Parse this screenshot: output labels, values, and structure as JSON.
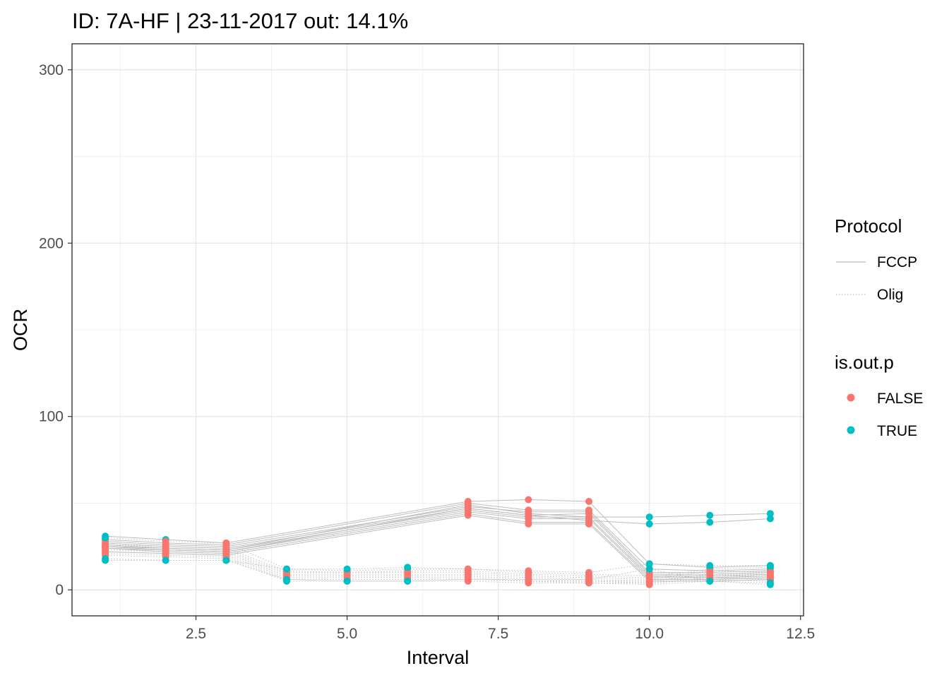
{
  "chart_data": {
    "type": "line",
    "title": "ID: 7A-HF | 23-11-2017  out: 14.1%",
    "xlabel": "Interval",
    "ylabel": "OCR",
    "xlim": [
      0.45,
      12.55
    ],
    "ylim": [
      -15,
      315
    ],
    "x_ticks": [
      2.5,
      5.0,
      7.5,
      10.0,
      12.5
    ],
    "x_tick_labels": [
      "2.5",
      "5.0",
      "7.5",
      "10.0",
      "12.5"
    ],
    "y_ticks": [
      0,
      100,
      200,
      300
    ],
    "y_tick_labels": [
      "0",
      "100",
      "200",
      "300"
    ],
    "grid": true,
    "legend_position": "right",
    "line_color": "#bdbdbd",
    "legends": [
      {
        "title": "Protocol",
        "kind": "line",
        "entries": [
          {
            "label": "FCCP",
            "linetype": "solid"
          },
          {
            "label": "Olig",
            "linetype": "dotted"
          }
        ]
      },
      {
        "title": "is.out.p",
        "kind": "point",
        "entries": [
          {
            "label": "FALSE",
            "color": "#f8766d"
          },
          {
            "label": "TRUE",
            "color": "#00bfc4"
          }
        ]
      }
    ],
    "colors": {
      "FALSE": "#f8766d",
      "TRUE": "#00bfc4"
    },
    "series": [
      {
        "protocol": "FCCP",
        "x": [
          1,
          2,
          3,
          7,
          8,
          9,
          10,
          11,
          12
        ],
        "y": [
          31,
          29,
          27,
          51,
          52,
          51,
          15,
          13,
          14
        ],
        "out": [
          true,
          true,
          false,
          false,
          false,
          false,
          true,
          true,
          true
        ]
      },
      {
        "protocol": "FCCP",
        "x": [
          1,
          2,
          3,
          7,
          8,
          9,
          10,
          11,
          12
        ],
        "y": [
          29,
          27,
          26,
          50,
          46,
          46,
          12,
          11,
          12
        ],
        "out": [
          true,
          false,
          false,
          false,
          false,
          false,
          false,
          false,
          false
        ]
      },
      {
        "protocol": "FCCP",
        "x": [
          1,
          2,
          3,
          7,
          8,
          9,
          10,
          11,
          12
        ],
        "y": [
          28,
          26,
          25,
          48,
          45,
          45,
          10,
          10,
          11
        ],
        "out": [
          false,
          false,
          false,
          false,
          false,
          false,
          false,
          false,
          false
        ]
      },
      {
        "protocol": "FCCP",
        "x": [
          1,
          2,
          3,
          7,
          8,
          9,
          10,
          11,
          12
        ],
        "y": [
          27,
          25,
          24,
          47,
          43,
          44,
          9,
          9,
          10
        ],
        "out": [
          false,
          false,
          false,
          false,
          false,
          false,
          false,
          false,
          false
        ]
      },
      {
        "protocol": "FCCP",
        "x": [
          1,
          2,
          3,
          7,
          8,
          9,
          10,
          11,
          12
        ],
        "y": [
          26,
          24,
          23,
          46,
          42,
          42,
          8,
          8,
          9
        ],
        "out": [
          false,
          false,
          false,
          false,
          false,
          false,
          false,
          false,
          false
        ]
      },
      {
        "protocol": "FCCP",
        "x": [
          1,
          2,
          3,
          7,
          8,
          9,
          10,
          11,
          12
        ],
        "y": [
          25,
          23,
          22,
          45,
          41,
          41,
          7,
          7,
          8
        ],
        "out": [
          false,
          false,
          false,
          false,
          false,
          false,
          false,
          false,
          false
        ]
      },
      {
        "protocol": "FCCP",
        "x": [
          1,
          2,
          3,
          7,
          8,
          9,
          10,
          11,
          12
        ],
        "y": [
          24,
          22,
          21,
          44,
          39,
          39,
          6,
          6,
          7
        ],
        "out": [
          false,
          false,
          false,
          false,
          false,
          false,
          false,
          false,
          false
        ]
      },
      {
        "protocol": "FCCP",
        "x": [
          1,
          2,
          3,
          7,
          8,
          9,
          10,
          11,
          12
        ],
        "y": [
          22,
          21,
          20,
          43,
          38,
          38,
          5,
          5,
          6
        ],
        "out": [
          false,
          false,
          false,
          false,
          false,
          false,
          false,
          false,
          false
        ]
      },
      {
        "protocol": "FCCP",
        "x": [
          1,
          2,
          3,
          7,
          8,
          9,
          10,
          11,
          12
        ],
        "y": [
          25,
          24,
          23,
          49,
          44,
          42,
          42,
          43,
          44
        ],
        "out": [
          false,
          false,
          false,
          false,
          false,
          false,
          true,
          true,
          true
        ]
      },
      {
        "protocol": "FCCP",
        "x": [
          1,
          2,
          3,
          7,
          8,
          9,
          10,
          11,
          12
        ],
        "y": [
          24,
          23,
          22,
          47,
          43,
          40,
          38,
          39,
          41
        ],
        "out": [
          false,
          false,
          false,
          false,
          false,
          false,
          true,
          true,
          true
        ]
      },
      {
        "protocol": "Olig",
        "x": [
          1,
          2,
          3,
          4,
          5,
          6,
          7,
          8,
          9,
          10,
          11,
          12
        ],
        "y": [
          30,
          28,
          27,
          12,
          11,
          12,
          12,
          10,
          9,
          8,
          7,
          6
        ],
        "out": [
          true,
          false,
          false,
          true,
          true,
          true,
          true,
          false,
          false,
          false,
          true,
          true
        ]
      },
      {
        "protocol": "Olig",
        "x": [
          1,
          2,
          3,
          4,
          5,
          6,
          7,
          8,
          9,
          10,
          11,
          12
        ],
        "y": [
          26,
          25,
          24,
          11,
          10,
          11,
          11,
          9,
          8,
          7,
          12,
          13
        ],
        "out": [
          false,
          false,
          false,
          false,
          false,
          false,
          false,
          false,
          false,
          false,
          true,
          true
        ]
      },
      {
        "protocol": "Olig",
        "x": [
          1,
          2,
          3,
          4,
          5,
          6,
          7,
          8,
          9,
          10,
          11,
          12
        ],
        "y": [
          25,
          24,
          23,
          10,
          10,
          10,
          10,
          8,
          7,
          6,
          11,
          10
        ],
        "out": [
          false,
          false,
          false,
          false,
          false,
          false,
          false,
          false,
          false,
          false,
          false,
          false
        ]
      },
      {
        "protocol": "Olig",
        "x": [
          1,
          2,
          3,
          4,
          5,
          6,
          7,
          8,
          9,
          10,
          11,
          12
        ],
        "y": [
          24,
          23,
          22,
          9,
          9,
          9,
          9,
          7,
          6,
          5,
          9,
          9
        ],
        "out": [
          false,
          false,
          false,
          false,
          false,
          false,
          false,
          false,
          false,
          false,
          false,
          false
        ]
      },
      {
        "protocol": "Olig",
        "x": [
          1,
          2,
          3,
          4,
          5,
          6,
          7,
          8,
          9,
          10,
          11,
          12
        ],
        "y": [
          23,
          22,
          21,
          8,
          8,
          8,
          8,
          6,
          5,
          5,
          8,
          8
        ],
        "out": [
          false,
          false,
          false,
          false,
          false,
          false,
          false,
          false,
          false,
          false,
          false,
          false
        ]
      },
      {
        "protocol": "Olig",
        "x": [
          1,
          2,
          3,
          4,
          5,
          6,
          7,
          8,
          9,
          10,
          11,
          12
        ],
        "y": [
          22,
          21,
          20,
          7,
          7,
          7,
          7,
          5,
          5,
          4,
          7,
          7
        ],
        "out": [
          false,
          false,
          false,
          false,
          false,
          false,
          false,
          false,
          false,
          false,
          false,
          false
        ]
      },
      {
        "protocol": "Olig",
        "x": [
          1,
          2,
          3,
          4,
          5,
          6,
          7,
          8,
          9,
          10,
          11,
          12
        ],
        "y": [
          21,
          20,
          19,
          6,
          6,
          6,
          6,
          5,
          4,
          4,
          6,
          5
        ],
        "out": [
          false,
          false,
          false,
          false,
          false,
          false,
          false,
          false,
          false,
          false,
          false,
          false
        ]
      },
      {
        "protocol": "Olig",
        "x": [
          1,
          2,
          3,
          4,
          5,
          6,
          7,
          8,
          9,
          10,
          11,
          12
        ],
        "y": [
          20,
          19,
          18,
          5,
          5,
          5,
          5,
          4,
          4,
          3,
          5,
          4
        ],
        "out": [
          false,
          false,
          false,
          true,
          true,
          true,
          false,
          false,
          false,
          false,
          true,
          true
        ]
      },
      {
        "protocol": "Olig",
        "x": [
          1,
          2,
          3,
          4,
          5,
          6,
          7,
          8,
          9,
          10,
          11,
          12
        ],
        "y": [
          18,
          17,
          17,
          12,
          12,
          13,
          12,
          11,
          10,
          15,
          14,
          14
        ],
        "out": [
          true,
          true,
          true,
          true,
          true,
          true,
          false,
          false,
          false,
          true,
          true,
          true
        ]
      },
      {
        "protocol": "Olig",
        "x": [
          1,
          2,
          3,
          4,
          5,
          6,
          7,
          8,
          9,
          10,
          11,
          12
        ],
        "y": [
          17,
          17,
          17,
          6,
          5,
          5,
          6,
          6,
          6,
          12,
          5,
          3
        ],
        "out": [
          true,
          true,
          true,
          true,
          true,
          true,
          false,
          false,
          false,
          true,
          true,
          true
        ]
      }
    ]
  }
}
